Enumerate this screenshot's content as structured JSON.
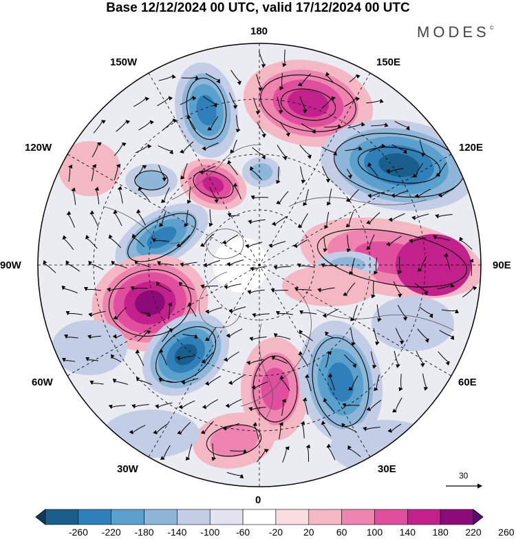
{
  "title": "Base 12/12/2024 00 UTC, valid 17/12/2024 00 UTC",
  "brand": {
    "name": "MODES",
    "mark": "©"
  },
  "longitude_labels": {
    "180": "180",
    "150E": "150E",
    "120E": "120E",
    "90E": "90E",
    "60E": "60E",
    "30E": "30E",
    "0": "0",
    "30W": "30W",
    "60W": "60W",
    "90W": "90W",
    "120W": "120W",
    "150W": "150W"
  },
  "wind_reference": {
    "value": "30"
  },
  "colorbar": {
    "labels": [
      "-260",
      "-220",
      "-180",
      "-140",
      "-100",
      "-60",
      "-20",
      "20",
      "60",
      "100",
      "140",
      "180",
      "220",
      "260"
    ],
    "colors": [
      "#0f3c5a",
      "#1a5e8c",
      "#2f80b8",
      "#5aa0cc",
      "#8eb6d8",
      "#c4cde6",
      "#e4e3f1",
      "#ffffff",
      "#f9dde0",
      "#f4b8c4",
      "#ee85b0",
      "#e04f9e",
      "#c2208a",
      "#8d0b78",
      "#5b0a6e"
    ]
  }
}
